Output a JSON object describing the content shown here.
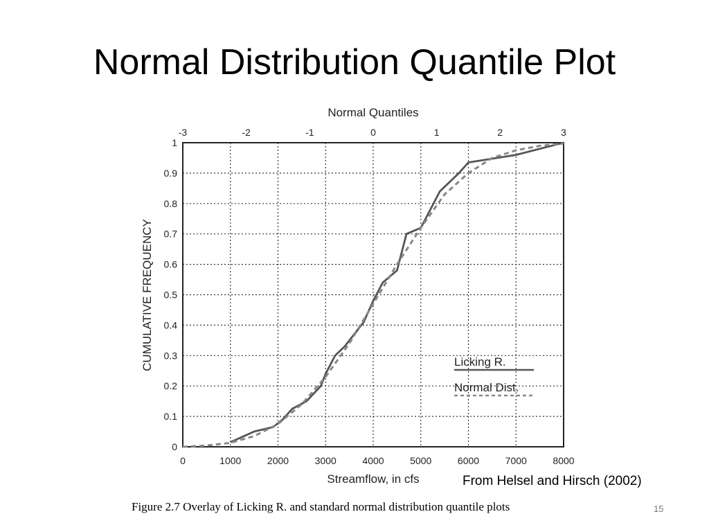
{
  "slide": {
    "title": "Normal Distribution Quantile Plot",
    "citation": "From Helsel and Hirsch (2002)",
    "caption": "Figure 2.7  Overlay of Licking R. and standard normal distribution quantile plots",
    "slide_number": "15"
  },
  "chart_data": {
    "type": "line",
    "xlabel": "Streamflow, in cfs",
    "x2label": "Normal Quantiles",
    "ylabel": "CUMULATIVE FREQUENCY",
    "xlim": [
      0,
      8000
    ],
    "ylim": [
      0,
      1
    ],
    "x2lim": [
      -3,
      3
    ],
    "x_ticks": [
      "0",
      "1000",
      "2000",
      "3000",
      "4000",
      "5000",
      "6000",
      "7000",
      "8000"
    ],
    "x2_ticks": [
      "-3",
      "-2",
      "-1",
      "0",
      "1",
      "2",
      "3"
    ],
    "y_ticks": [
      "0",
      "0.1",
      "0.2",
      "0.3",
      "0.4",
      "0.5",
      "0.6",
      "0.7",
      "0.8",
      "0.9",
      "1"
    ],
    "grid": true,
    "legend": {
      "position": "bottom-right",
      "entries": [
        "Licking R.",
        "Normal Dist."
      ]
    },
    "series": [
      {
        "name": "Licking R.",
        "style": "solid",
        "x": [
          1000,
          1500,
          1900,
          2100,
          2300,
          2600,
          2900,
          3000,
          3200,
          3400,
          3600,
          3800,
          4000,
          4200,
          4500,
          4700,
          5000,
          5200,
          5400,
          5600,
          5800,
          6000,
          7000,
          8000
        ],
        "y": [
          0.015,
          0.05,
          0.065,
          0.09,
          0.125,
          0.15,
          0.2,
          0.24,
          0.3,
          0.33,
          0.37,
          0.41,
          0.48,
          0.54,
          0.58,
          0.7,
          0.72,
          0.78,
          0.84,
          0.87,
          0.9,
          0.935,
          0.96,
          1.0
        ]
      },
      {
        "name": "Normal Dist.",
        "style": "dashed",
        "x": [
          0,
          500,
          1000,
          1500,
          2000,
          2500,
          3000,
          3500,
          4000,
          4500,
          5000,
          5500,
          6000,
          6500,
          7000,
          7500,
          8000
        ],
        "y": [
          0.0,
          0.004,
          0.013,
          0.035,
          0.075,
          0.14,
          0.23,
          0.34,
          0.47,
          0.6,
          0.72,
          0.83,
          0.9,
          0.95,
          0.975,
          0.99,
          0.997
        ]
      }
    ]
  }
}
